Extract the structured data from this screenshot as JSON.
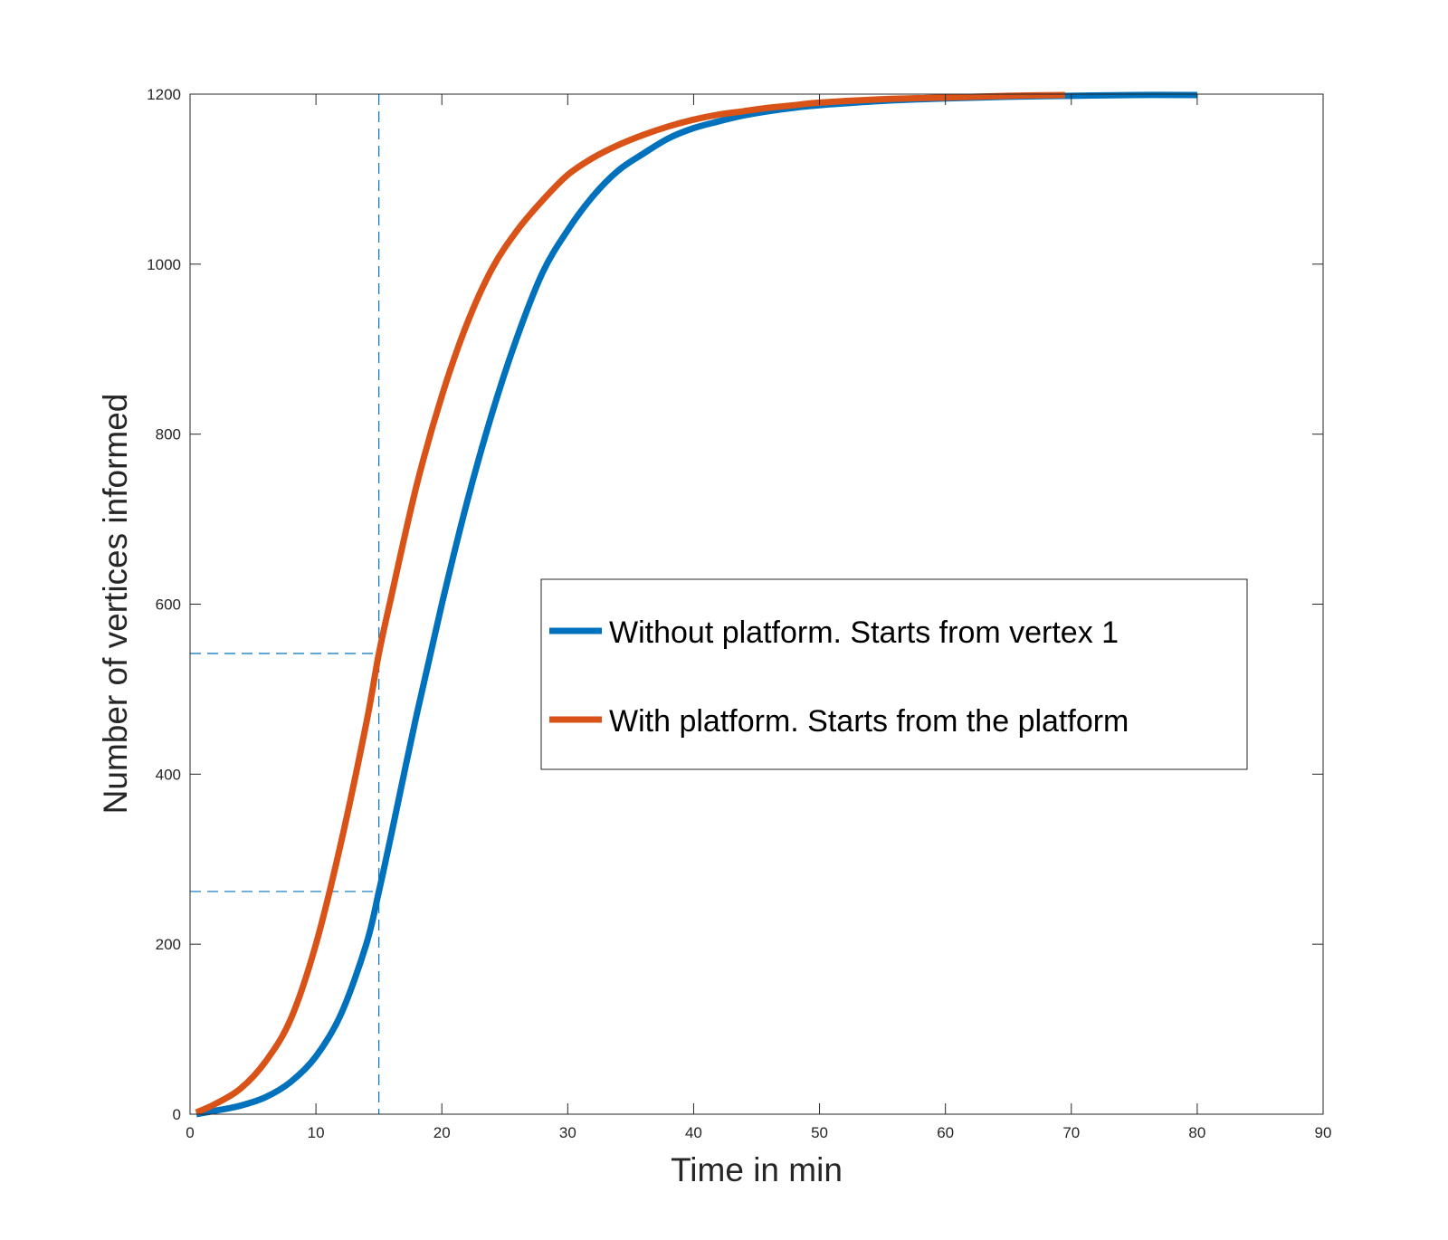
{
  "chart_data": {
    "type": "line",
    "xlabel": "Time in min",
    "ylabel": "Number of vertices informed",
    "xlim": [
      0,
      90
    ],
    "ylim": [
      0,
      1200
    ],
    "xticks": [
      0,
      10,
      20,
      30,
      40,
      50,
      60,
      70,
      80,
      90
    ],
    "yticks": [
      0,
      200,
      400,
      600,
      800,
      1000,
      1200
    ],
    "grid": false,
    "legend_position": "center-right",
    "series": [
      {
        "name": "Without platform. Starts from vertex 1",
        "color": "#0072BD",
        "x": [
          0.5,
          2,
          4,
          6,
          8,
          10,
          12,
          14,
          15,
          16,
          18,
          20,
          22,
          24,
          26,
          28,
          30,
          32,
          34,
          36,
          38,
          40,
          42,
          44,
          46,
          48,
          50,
          55,
          60,
          65,
          70,
          75,
          80
        ],
        "y": [
          0,
          4,
          10,
          20,
          38,
          68,
          118,
          200,
          262,
          330,
          470,
          600,
          720,
          825,
          915,
          990,
          1040,
          1080,
          1110,
          1130,
          1148,
          1160,
          1168,
          1175,
          1180,
          1184,
          1187,
          1192,
          1195,
          1197,
          1198,
          1199,
          1199
        ]
      },
      {
        "name": "With platform. Starts from the platform",
        "color": "#D95319",
        "x": [
          0.5,
          2,
          4,
          6,
          8,
          10,
          12,
          14,
          15,
          16,
          18,
          20,
          22,
          24,
          26,
          28,
          30,
          32,
          34,
          36,
          38,
          40,
          42,
          44,
          46,
          48,
          50,
          55,
          60,
          65,
          69.5
        ],
        "y": [
          2,
          12,
          30,
          62,
          112,
          200,
          320,
          460,
          542,
          610,
          740,
          845,
          930,
          995,
          1040,
          1075,
          1105,
          1125,
          1140,
          1152,
          1162,
          1170,
          1176,
          1180,
          1184,
          1187,
          1190,
          1194,
          1196,
          1198,
          1199
        ]
      }
    ],
    "reference_lines": [
      {
        "orientation": "vertical",
        "value": 15,
        "color": "#0072BD",
        "style": "dashed"
      },
      {
        "orientation": "horizontal",
        "value": 542,
        "color": "#0072BD",
        "style": "dashed"
      },
      {
        "orientation": "horizontal",
        "value": 262,
        "color": "#0072BD",
        "style": "dashed"
      }
    ]
  }
}
